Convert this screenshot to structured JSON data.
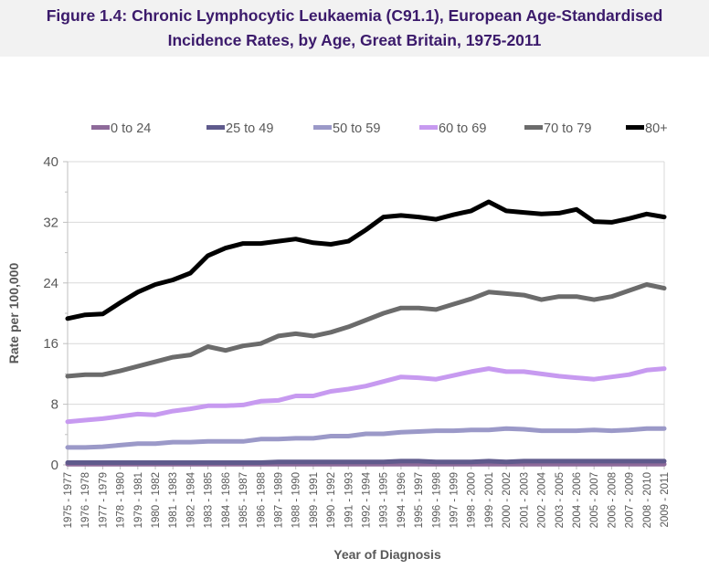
{
  "title": {
    "line1": "Figure 1.4: Chronic Lymphocytic Leukaemia (C91.1), European Age-Standardised",
    "line2": "Incidence Rates, by Age, Great Britain, 1975-2011"
  },
  "chart_data": {
    "type": "line",
    "title": "Figure 1.4: Chronic Lymphocytic Leukaemia (C91.1), European Age-Standardised Incidence Rates, by Age, Great Britain, 1975-2011",
    "xlabel": "Year of Diagnosis",
    "ylabel": "Rate per 100,000",
    "ylim": [
      0,
      40
    ],
    "yticks": [
      "0",
      "8",
      "16",
      "24",
      "32",
      "40"
    ],
    "grid": true,
    "legend_position": "top",
    "categories": [
      "1975 - 1977",
      "1976 - 1978",
      "1977 - 1979",
      "1978 - 1980",
      "1979 - 1981",
      "1980 - 1982",
      "1981 - 1983",
      "1982 - 1984",
      "1983 - 1985",
      "1984 - 1986",
      "1985 - 1987",
      "1986 - 1988",
      "1987 - 1989",
      "1988 - 1990",
      "1989 - 1991",
      "1990 - 1992",
      "1991 - 1993",
      "1992 - 1994",
      "1993 - 1995",
      "1994 - 1996",
      "1995 - 1997",
      "1996 - 1998",
      "1997 - 1999",
      "1998 - 2000",
      "1999 - 2001",
      "2000 - 2002",
      "2001 - 2003",
      "2002 - 2004",
      "2003 - 2005",
      "2004 - 2006",
      "2005 - 2007",
      "2006 - 2008",
      "2007 - 2009",
      "2008 - 2010",
      "2009 - 2011"
    ],
    "series": [
      {
        "name": "0 to 24",
        "color": "#8e6a9a",
        "values": [
          0.1,
          0.1,
          0.1,
          0.1,
          0.1,
          0.1,
          0.1,
          0.1,
          0.1,
          0.1,
          0.1,
          0.1,
          0.1,
          0.1,
          0.1,
          0.1,
          0.1,
          0.1,
          0.1,
          0.1,
          0.1,
          0.1,
          0.1,
          0.1,
          0.1,
          0.1,
          0.1,
          0.1,
          0.1,
          0.1,
          0.1,
          0.1,
          0.1,
          0.1,
          0.1
        ]
      },
      {
        "name": "25 to 49",
        "color": "#5f5a8c",
        "values": [
          0.3,
          0.3,
          0.3,
          0.3,
          0.3,
          0.3,
          0.3,
          0.3,
          0.3,
          0.3,
          0.3,
          0.3,
          0.4,
          0.4,
          0.4,
          0.4,
          0.4,
          0.4,
          0.4,
          0.5,
          0.5,
          0.4,
          0.4,
          0.4,
          0.5,
          0.4,
          0.5,
          0.5,
          0.5,
          0.5,
          0.5,
          0.5,
          0.5,
          0.5,
          0.5
        ]
      },
      {
        "name": "50 to 59",
        "color": "#9b99c8",
        "values": [
          2.3,
          2.3,
          2.4,
          2.6,
          2.8,
          2.8,
          3.0,
          3.0,
          3.1,
          3.1,
          3.1,
          3.4,
          3.4,
          3.5,
          3.5,
          3.8,
          3.8,
          4.1,
          4.1,
          4.3,
          4.4,
          4.5,
          4.5,
          4.6,
          4.6,
          4.8,
          4.7,
          4.5,
          4.5,
          4.5,
          4.6,
          4.5,
          4.6,
          4.8,
          4.8
        ]
      },
      {
        "name": "60 to 69",
        "color": "#c79af0",
        "values": [
          5.7,
          5.9,
          6.1,
          6.4,
          6.7,
          6.6,
          7.1,
          7.4,
          7.8,
          7.8,
          7.9,
          8.4,
          8.5,
          9.1,
          9.1,
          9.7,
          10.0,
          10.4,
          11.0,
          11.6,
          11.5,
          11.3,
          11.8,
          12.3,
          12.7,
          12.3,
          12.3,
          12.0,
          11.7,
          11.5,
          11.3,
          11.6,
          11.9,
          12.5,
          12.7
        ]
      },
      {
        "name": "70 to 79",
        "color": "#6b6b6b",
        "values": [
          11.7,
          11.9,
          11.9,
          12.4,
          13.0,
          13.6,
          14.2,
          14.5,
          15.6,
          15.1,
          15.7,
          16.0,
          17.0,
          17.3,
          17.0,
          17.5,
          18.2,
          19.1,
          20.0,
          20.7,
          20.7,
          20.5,
          21.2,
          21.9,
          22.8,
          22.6,
          22.4,
          21.8,
          22.2,
          22.2,
          21.8,
          22.2,
          23.0,
          23.8,
          23.3
        ]
      },
      {
        "name": "80+",
        "color": "#000000",
        "values": [
          19.3,
          19.8,
          19.9,
          21.4,
          22.8,
          23.8,
          24.4,
          25.3,
          27.6,
          28.6,
          29.2,
          29.2,
          29.5,
          29.8,
          29.3,
          29.1,
          29.5,
          31.0,
          32.7,
          32.9,
          32.7,
          32.4,
          33.0,
          33.5,
          34.7,
          33.5,
          33.3,
          33.1,
          33.2,
          33.7,
          32.1,
          32.0,
          32.5,
          33.1,
          32.7
        ]
      }
    ]
  }
}
